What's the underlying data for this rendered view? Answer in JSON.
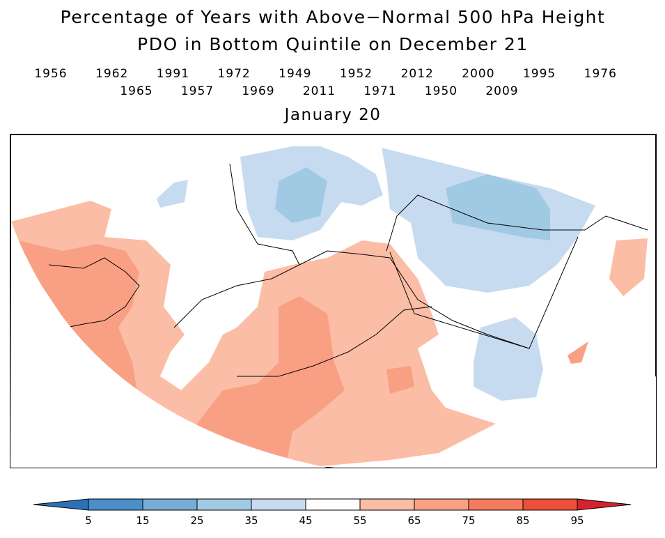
{
  "title": "Percentage of Years with Above−Normal 500 hPa Height",
  "subtitle": "PDO in Bottom Quintile on December 21",
  "years_row1": [
    "1956",
    "1962",
    "1991",
    "1972",
    "1949",
    "1952",
    "2012",
    "2000",
    "1995",
    "1976"
  ],
  "years_row2": [
    "1965",
    "1957",
    "1969",
    "2011",
    "1971",
    "1950",
    "2009"
  ],
  "date": "January 20",
  "colorbar": {
    "ticks": [
      5,
      15,
      25,
      35,
      45,
      55,
      65,
      75,
      85,
      95
    ],
    "colors": [
      "#2b72b5",
      "#4a8fc8",
      "#76acd8",
      "#a0c9e4",
      "#c7dbf0",
      "#ffffff",
      "#fbbda5",
      "#f9a084",
      "#f57c5e",
      "#ec4f3a",
      "#d4232a"
    ]
  }
}
